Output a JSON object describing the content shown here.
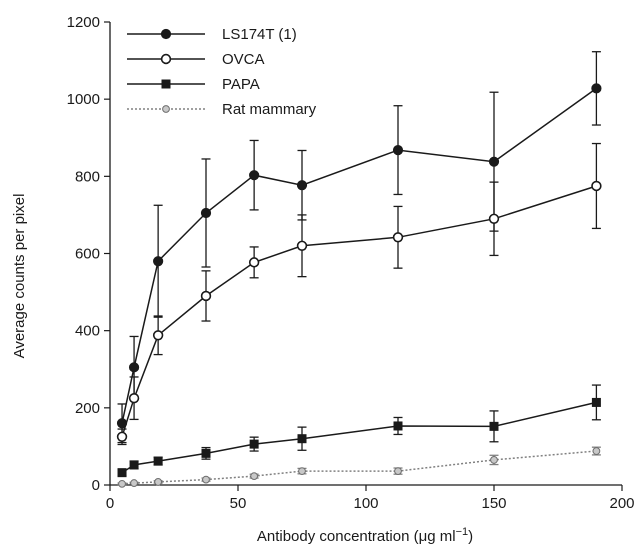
{
  "chart_data": {
    "type": "line",
    "xlabel": "Antibody concentration (μg ml",
    "xlabel_sup": "−1",
    "xlabel_close": ")",
    "ylabel": "Average counts per pixel",
    "xlim": [
      0,
      200
    ],
    "ylim": [
      0,
      1200
    ],
    "xticks": [
      0,
      50,
      100,
      150,
      200
    ],
    "yticks": [
      0,
      200,
      400,
      600,
      800,
      1000,
      1200
    ],
    "grid": false,
    "legend_position": "top-left",
    "series": [
      {
        "name": "LS174T (1)",
        "marker": "filled-circle",
        "line": "solid",
        "color": "#1a1a1a",
        "x": [
          4.7,
          9.4,
          18.8,
          37.5,
          56.3,
          75,
          112.5,
          150,
          190
        ],
        "y": [
          160,
          305,
          580,
          705,
          803,
          777,
          868,
          838,
          1028
        ],
        "err": [
          50,
          80,
          145,
          140,
          90,
          90,
          115,
          180,
          95
        ]
      },
      {
        "name": "OVCA",
        "marker": "open-circle",
        "line": "solid",
        "color": "#1a1a1a",
        "x": [
          4.7,
          9.4,
          18.8,
          37.5,
          56.3,
          75,
          112.5,
          150,
          190
        ],
        "y": [
          125,
          225,
          388,
          490,
          577,
          620,
          642,
          690,
          775
        ],
        "err": [
          20,
          55,
          50,
          65,
          40,
          80,
          80,
          95,
          110
        ]
      },
      {
        "name": "PAPA",
        "marker": "filled-square",
        "line": "solid",
        "color": "#1a1a1a",
        "x": [
          4.7,
          9.4,
          18.8,
          37.5,
          56.3,
          75,
          112.5,
          150,
          190
        ],
        "y": [
          32,
          52,
          62,
          82,
          106,
          120,
          153,
          152,
          214
        ],
        "err": [
          8,
          10,
          10,
          15,
          18,
          30,
          22,
          40,
          45
        ]
      },
      {
        "name": "Rat mammary",
        "marker": "small-diamond",
        "line": "dotted",
        "color": "#808080",
        "x": [
          4.7,
          9.4,
          18.8,
          37.5,
          56.3,
          75,
          112.5,
          150,
          190
        ],
        "y": [
          3,
          5,
          8,
          14,
          23,
          36,
          36,
          65,
          88
        ],
        "err": [
          2,
          2,
          3,
          4,
          5,
          7,
          8,
          12,
          10
        ]
      }
    ]
  }
}
